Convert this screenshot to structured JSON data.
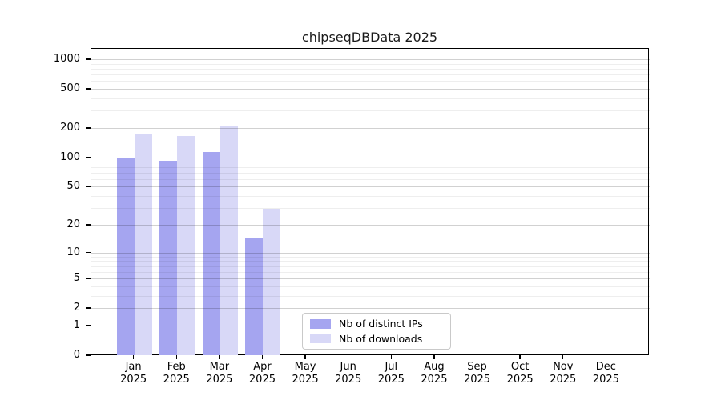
{
  "chart_data": {
    "type": "bar",
    "title": "chipseqDBData 2025",
    "categories": [
      "Jan",
      "Feb",
      "Mar",
      "Apr",
      "May",
      "Jun",
      "Jul",
      "Aug",
      "Sep",
      "Oct",
      "Nov",
      "Dec"
    ],
    "category_year": "2025",
    "series": [
      {
        "name": "Nb of distinct IPs",
        "color": "#a5a5f0",
        "values": [
          100,
          95,
          117,
          15,
          0,
          0,
          0,
          0,
          0,
          0,
          0,
          0
        ]
      },
      {
        "name": "Nb of downloads",
        "color": "#d8d8f7",
        "values": [
          180,
          170,
          210,
          30,
          0,
          0,
          0,
          0,
          0,
          0,
          0,
          0
        ]
      }
    ],
    "yscale": "log1p",
    "yticks": [
      0,
      1,
      2,
      5,
      10,
      20,
      50,
      100,
      200,
      500,
      1000
    ],
    "yticks_minor": [
      3,
      4,
      6,
      7,
      8,
      9,
      30,
      40,
      60,
      70,
      80,
      90,
      300,
      400,
      600,
      700,
      800,
      900
    ],
    "ylim": [
      0,
      1300
    ],
    "grid": "horizontal",
    "legend_position": "lower-center"
  }
}
